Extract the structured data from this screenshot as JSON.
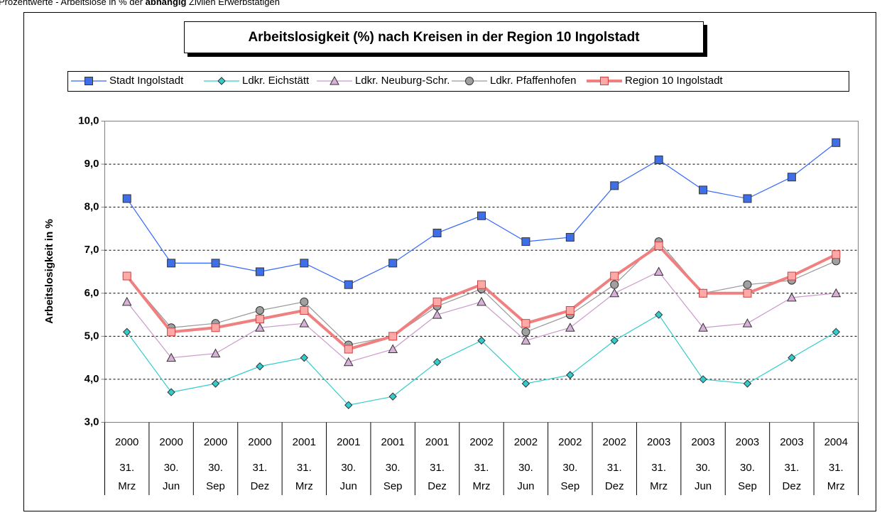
{
  "note": [
    "Prozentwerte - Arbeitslose in % der ",
    "abhängig",
    " Zivilen Erwerbstätigen"
  ],
  "chart_data": {
    "type": "line",
    "title": "Arbeitslosigkeit (%) nach Kreisen in der Region 10 Ingolstadt",
    "y_label": "Arbeitslosigkeit in %",
    "categories": [
      [
        "2000",
        "31.",
        "Mrz"
      ],
      [
        "2000",
        "30.",
        "Jun"
      ],
      [
        "2000",
        "30.",
        "Sep"
      ],
      [
        "2000",
        "31.",
        "Dez"
      ],
      [
        "2001",
        "31.",
        "Mrz"
      ],
      [
        "2001",
        "30.",
        "Jun"
      ],
      [
        "2001",
        "30.",
        "Sep"
      ],
      [
        "2001",
        "31.",
        "Dez"
      ],
      [
        "2002",
        "31.",
        "Mrz"
      ],
      [
        "2002",
        "30.",
        "Jun"
      ],
      [
        "2002",
        "30.",
        "Sep"
      ],
      [
        "2002",
        "31.",
        "Dez"
      ],
      [
        "2003",
        "31.",
        "Mrz"
      ],
      [
        "2003",
        "30.",
        "Jun"
      ],
      [
        "2003",
        "30.",
        "Sep"
      ],
      [
        "2003",
        "31.",
        "Dez"
      ],
      [
        "2004",
        "31.",
        "Mrz"
      ]
    ],
    "series": [
      {
        "name": "Stadt Ingolstadt",
        "color": "#3366ff",
        "marker": "square",
        "marker_fill": "#3f6fe8",
        "line_width": 1.2,
        "values": [
          8.2,
          6.7,
          6.7,
          6.5,
          6.7,
          6.2,
          6.7,
          7.4,
          7.8,
          7.2,
          7.3,
          8.5,
          9.1,
          8.4,
          8.2,
          8.7,
          9.5
        ]
      },
      {
        "name": "Ldkr. Eichstätt",
        "color": "#33cccc",
        "marker": "diamond",
        "marker_fill": "#33cccc",
        "line_width": 1.2,
        "values": [
          5.1,
          3.7,
          3.9,
          4.3,
          4.5,
          3.4,
          3.6,
          4.4,
          4.9,
          3.9,
          4.1,
          4.9,
          5.5,
          4.0,
          3.9,
          4.5,
          5.1
        ]
      },
      {
        "name": "Ldkr. Neuburg-Schr.",
        "color": "#cc99cc",
        "marker": "triangle",
        "marker_fill": "#d8b0d8",
        "line_width": 1.2,
        "values": [
          5.8,
          4.5,
          4.6,
          5.2,
          5.3,
          4.4,
          4.7,
          5.5,
          5.8,
          4.9,
          5.2,
          6.0,
          6.5,
          5.2,
          5.3,
          5.9,
          6.0
        ]
      },
      {
        "name": "Ldkr. Pfaffenhofen",
        "color": "#999999",
        "marker": "circle",
        "marker_fill": "#a0a0a0",
        "line_width": 1.2,
        "values": [
          6.4,
          5.2,
          5.3,
          5.6,
          5.8,
          4.8,
          5.0,
          5.7,
          6.1,
          5.1,
          5.5,
          6.2,
          7.2,
          6.0,
          6.2,
          6.3,
          6.75
        ]
      },
      {
        "name": "Region 10 Ingolstadt",
        "color": "#f08080",
        "marker": "square",
        "marker_fill": "#ffa8a8",
        "line_width": 4,
        "values": [
          6.4,
          5.1,
          5.2,
          5.4,
          5.6,
          4.7,
          5.0,
          5.8,
          6.2,
          5.3,
          5.6,
          6.4,
          7.1,
          6.0,
          6.0,
          6.4,
          6.9
        ]
      }
    ],
    "ylim": [
      3,
      10
    ],
    "yticks": [
      {
        "value": 3,
        "label": "3,0"
      },
      {
        "value": 4,
        "label": "4,0"
      },
      {
        "value": 5,
        "label": "5,0"
      },
      {
        "value": 6,
        "label": "6,0"
      },
      {
        "value": 7,
        "label": "7,0"
      },
      {
        "value": 8,
        "label": "8,0"
      },
      {
        "value": 9,
        "label": "9,0"
      },
      {
        "value": 10,
        "label": "10,0"
      }
    ],
    "grid": true,
    "legend": "top"
  }
}
